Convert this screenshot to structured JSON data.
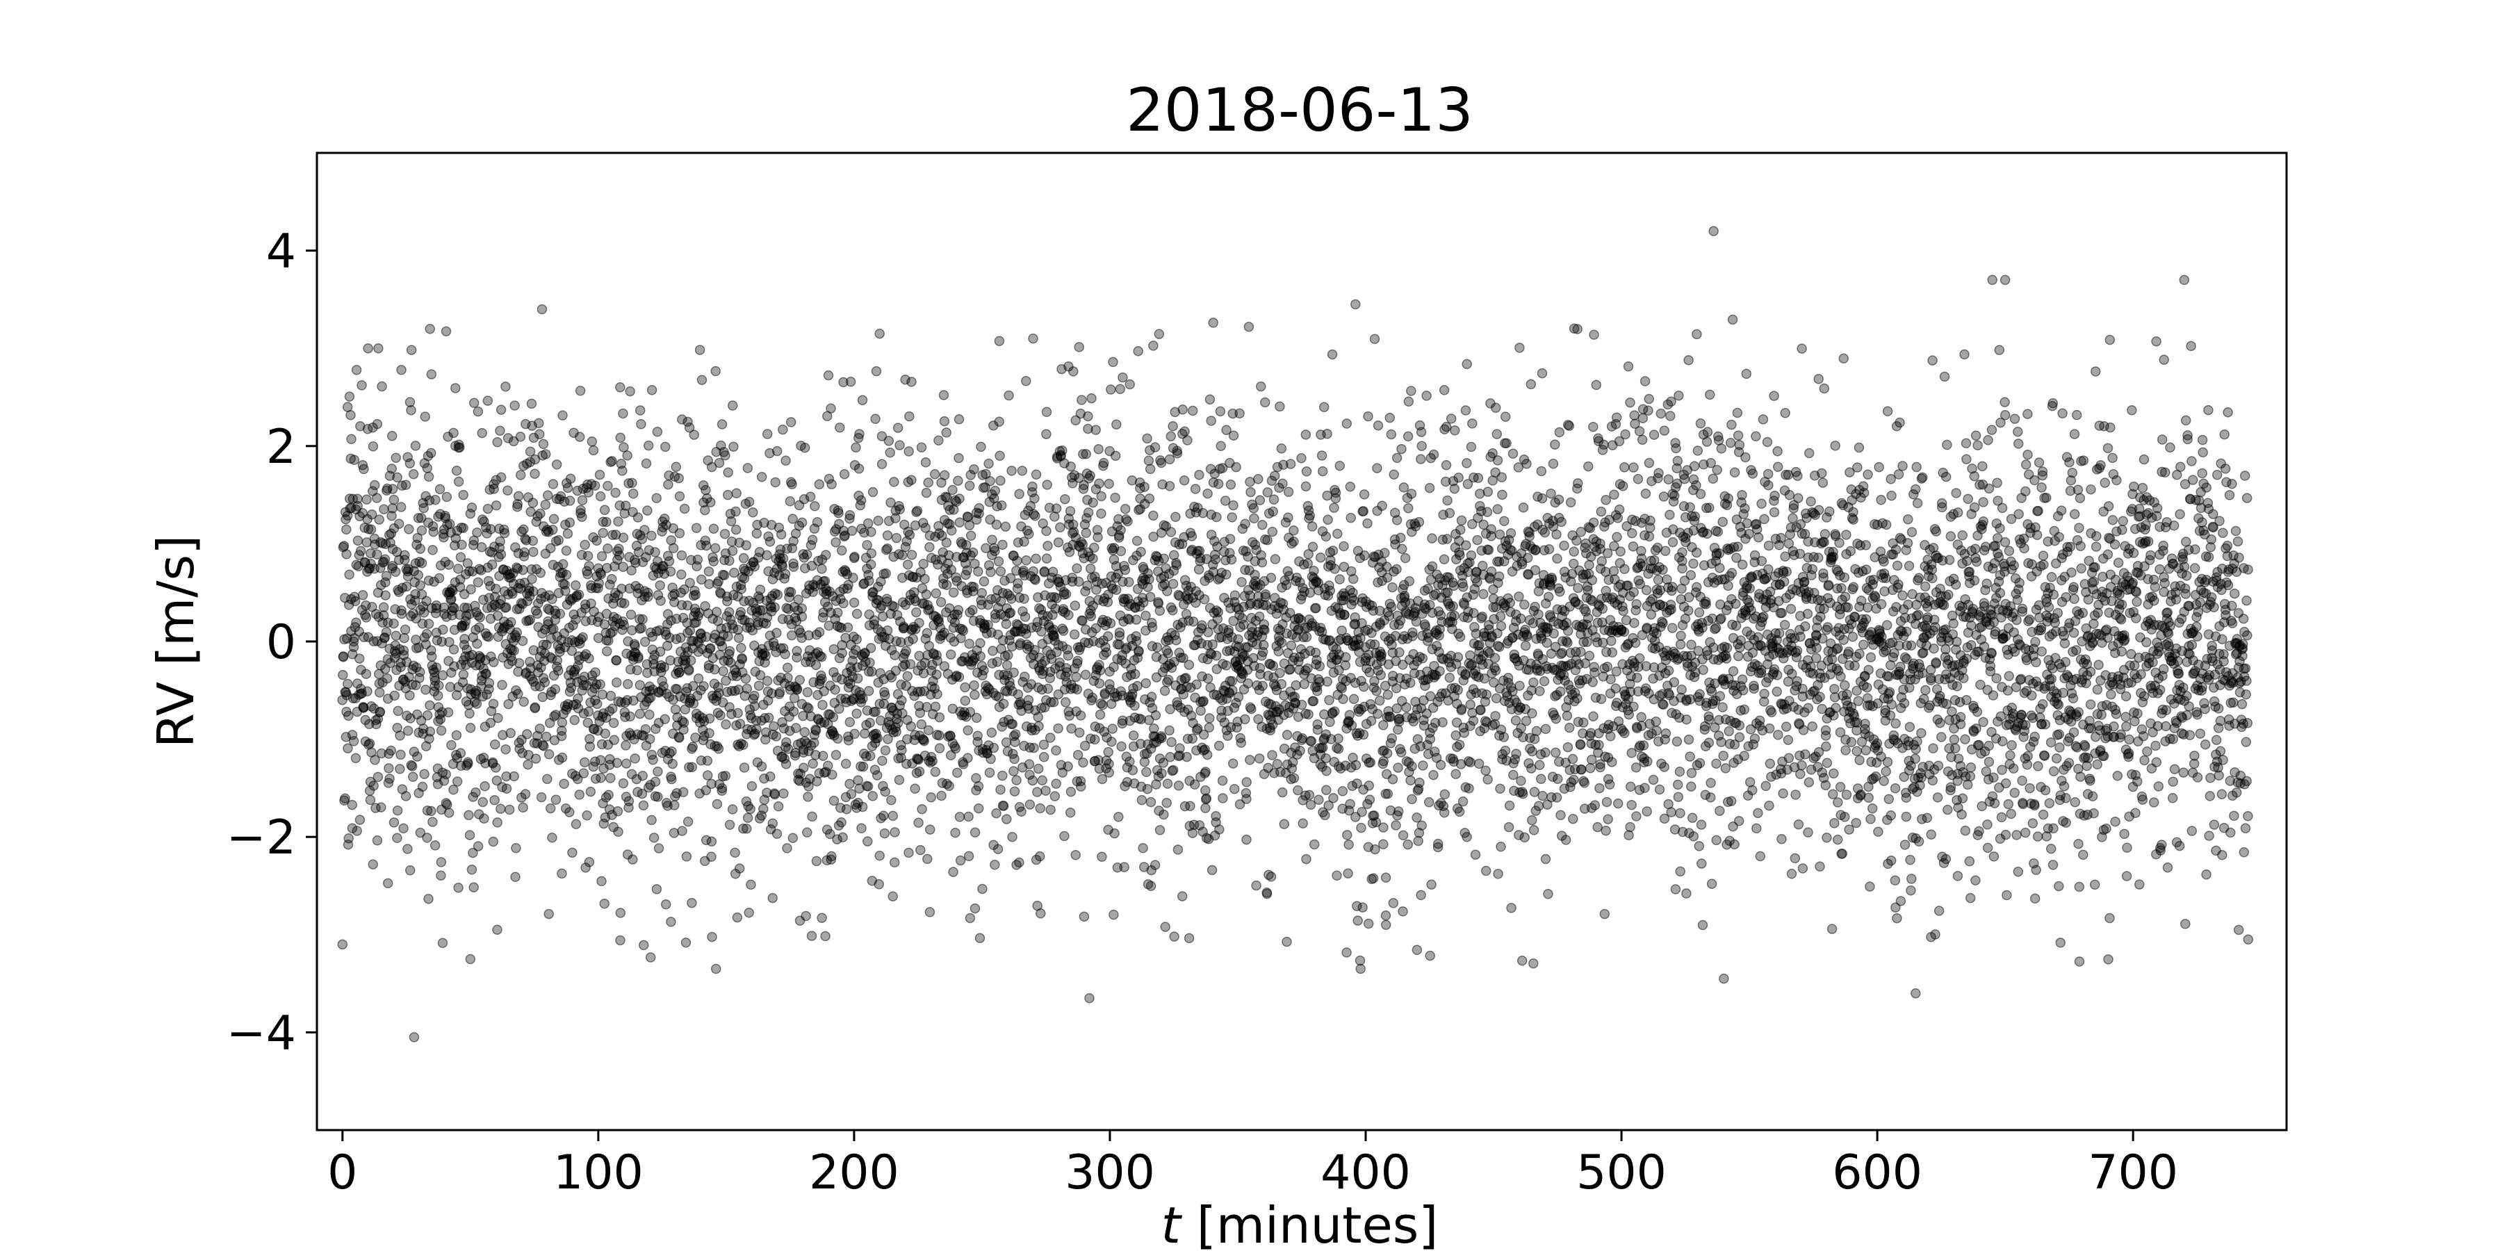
{
  "chart_data": {
    "type": "scatter",
    "title": "2018-06-13",
    "xlabel_italic": "t",
    "xlabel_rest": " [minutes]",
    "ylabel": "RV [m/s]",
    "xlim": [
      -10,
      760
    ],
    "ylim": [
      -5,
      5
    ],
    "xticks": [
      0,
      100,
      200,
      300,
      400,
      500,
      600,
      700
    ],
    "yticks": [
      -4,
      -2,
      0,
      2,
      4
    ],
    "ytick_labels": [
      "−4",
      "−2",
      "0",
      "2",
      "4"
    ],
    "grid": false,
    "legend": "none",
    "marker_color": "#000000",
    "marker_opacity": 0.35,
    "series": [
      {
        "n_points": 7500,
        "x_range": [
          0,
          745
        ],
        "y_std_estimate": 1.1,
        "sample_points": [
          [
            0,
            -3.1
          ],
          [
            2,
            2.4
          ],
          [
            10,
            3.0
          ],
          [
            14,
            3.0
          ],
          [
            28,
            -4.05
          ],
          [
            50,
            -3.25
          ],
          [
            78,
            3.4
          ],
          [
            146,
            -3.35
          ],
          [
            210,
            3.15
          ],
          [
            270,
            3.1
          ],
          [
            292,
            -3.65
          ],
          [
            396,
            3.45
          ],
          [
            398,
            -3.35
          ],
          [
            536,
            4.2
          ],
          [
            540,
            -3.45
          ],
          [
            645,
            3.7
          ],
          [
            650,
            3.7
          ],
          [
            615,
            -3.6
          ],
          [
            720,
            3.7
          ],
          [
            745,
            -3.05
          ]
        ]
      }
    ]
  }
}
